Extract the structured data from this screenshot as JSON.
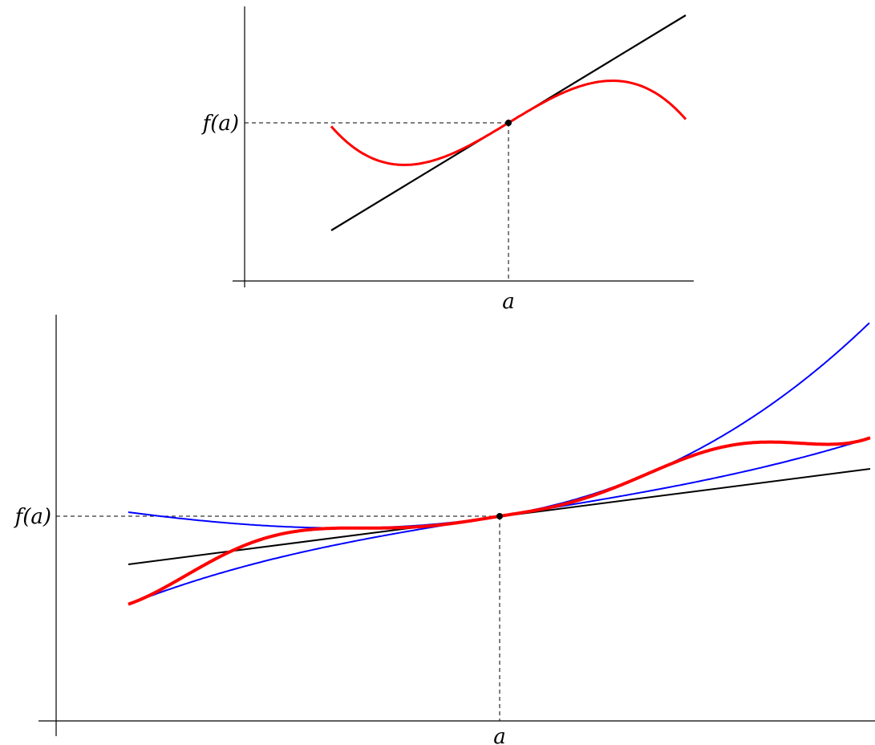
{
  "figures": [
    {
      "y_label": "f(a)",
      "x_label": "a",
      "curves": [
        {
          "role": "tangent-line",
          "color": "#000000"
        },
        {
          "role": "function",
          "color": "#ff0000"
        }
      ]
    },
    {
      "y_label": "f(a)",
      "x_label": "a",
      "curves": [
        {
          "role": "tangent-line",
          "color": "#000000"
        },
        {
          "role": "upper-bound",
          "color": "#0000ff"
        },
        {
          "role": "lower-bound",
          "color": "#0000ff"
        },
        {
          "role": "oscillating-function",
          "color": "#ff0000"
        }
      ]
    }
  ]
}
